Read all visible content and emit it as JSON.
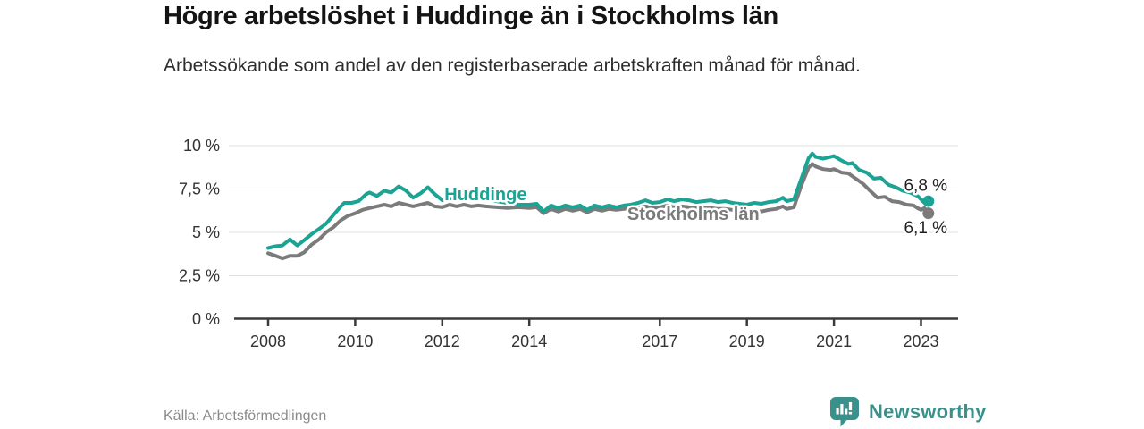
{
  "header": {
    "title": "Högre arbetslöshet i Huddinge än i Stockholms län",
    "subtitle": "Arbetssökande som andel av den registerbaserade arbetskraften månad för månad."
  },
  "chart_data": {
    "type": "line",
    "title": "Högre arbetslöshet i Huddinge än i Stockholms län",
    "xlabel": "",
    "ylabel": "",
    "x_unit": "year, monthly observations",
    "xlim": [
      2007.2,
      2023.9
    ],
    "ylim": [
      0,
      10
    ],
    "grid": true,
    "y_ticks": [
      {
        "value": 0,
        "label": "0 %"
      },
      {
        "value": 2.5,
        "label": "2,5 %"
      },
      {
        "value": 5,
        "label": "5 %"
      },
      {
        "value": 7.5,
        "label": "7,5 %"
      },
      {
        "value": 10,
        "label": "10 %"
      }
    ],
    "x_ticks": [
      {
        "value": 2008,
        "label": "2008"
      },
      {
        "value": 2010,
        "label": "2010"
      },
      {
        "value": 2012,
        "label": "2012"
      },
      {
        "value": 2014,
        "label": "2014"
      },
      {
        "value": 2017,
        "label": "2017"
      },
      {
        "value": 2019,
        "label": "2019"
      },
      {
        "value": 2021,
        "label": "2021"
      },
      {
        "value": 2023,
        "label": "2023"
      }
    ],
    "series": [
      {
        "name": "Stockholms län",
        "color": "#7b7b7b",
        "end_label": "6,1 %",
        "end_label_side": "below",
        "label_anchor": {
          "year": 2017.77,
          "value": 6.03,
          "anchor": "middle"
        },
        "points": [
          [
            2008.0,
            3.8
          ],
          [
            2008.17,
            3.65
          ],
          [
            2008.33,
            3.5
          ],
          [
            2008.5,
            3.65
          ],
          [
            2008.67,
            3.65
          ],
          [
            2008.83,
            3.85
          ],
          [
            2009.0,
            4.3
          ],
          [
            2009.17,
            4.6
          ],
          [
            2009.33,
            5.0
          ],
          [
            2009.5,
            5.3
          ],
          [
            2009.67,
            5.7
          ],
          [
            2009.83,
            5.95
          ],
          [
            2010.0,
            6.1
          ],
          [
            2010.17,
            6.3
          ],
          [
            2010.33,
            6.4
          ],
          [
            2010.5,
            6.5
          ],
          [
            2010.67,
            6.6
          ],
          [
            2010.83,
            6.5
          ],
          [
            2011.0,
            6.7
          ],
          [
            2011.17,
            6.6
          ],
          [
            2011.33,
            6.5
          ],
          [
            2011.5,
            6.6
          ],
          [
            2011.67,
            6.7
          ],
          [
            2011.83,
            6.5
          ],
          [
            2012.0,
            6.45
          ],
          [
            2012.17,
            6.6
          ],
          [
            2012.33,
            6.5
          ],
          [
            2012.5,
            6.6
          ],
          [
            2012.67,
            6.5
          ],
          [
            2012.83,
            6.55
          ],
          [
            2013.0,
            6.5
          ],
          [
            2013.25,
            6.45
          ],
          [
            2013.5,
            6.4
          ],
          [
            2013.75,
            6.45
          ],
          [
            2014.0,
            6.4
          ],
          [
            2014.17,
            6.45
          ],
          [
            2014.33,
            6.1
          ],
          [
            2014.5,
            6.35
          ],
          [
            2014.67,
            6.2
          ],
          [
            2014.83,
            6.35
          ],
          [
            2015.0,
            6.25
          ],
          [
            2015.17,
            6.35
          ],
          [
            2015.33,
            6.15
          ],
          [
            2015.5,
            6.35
          ],
          [
            2015.67,
            6.25
          ],
          [
            2015.83,
            6.35
          ],
          [
            2016.0,
            6.3
          ],
          [
            2016.17,
            6.35
          ],
          [
            2016.33,
            6.4
          ],
          [
            2016.5,
            6.4
          ],
          [
            2016.67,
            6.5
          ],
          [
            2016.83,
            6.4
          ],
          [
            2017.0,
            6.45
          ],
          [
            2017.17,
            6.55
          ],
          [
            2017.33,
            6.45
          ],
          [
            2017.5,
            6.5
          ],
          [
            2017.67,
            6.45
          ],
          [
            2017.83,
            6.4
          ],
          [
            2018.0,
            6.45
          ],
          [
            2018.17,
            6.4
          ],
          [
            2018.33,
            6.35
          ],
          [
            2018.5,
            6.35
          ],
          [
            2018.67,
            6.3
          ],
          [
            2018.83,
            6.25
          ],
          [
            2019.0,
            6.15
          ],
          [
            2019.17,
            6.25
          ],
          [
            2019.33,
            6.2
          ],
          [
            2019.5,
            6.3
          ],
          [
            2019.67,
            6.35
          ],
          [
            2019.83,
            6.5
          ],
          [
            2019.92,
            6.35
          ],
          [
            2020.08,
            6.45
          ],
          [
            2020.25,
            7.7
          ],
          [
            2020.42,
            8.75
          ],
          [
            2020.5,
            8.95
          ],
          [
            2020.58,
            8.8
          ],
          [
            2020.75,
            8.65
          ],
          [
            2020.92,
            8.6
          ],
          [
            2021.0,
            8.65
          ],
          [
            2021.17,
            8.45
          ],
          [
            2021.33,
            8.4
          ],
          [
            2021.5,
            8.1
          ],
          [
            2021.67,
            7.8
          ],
          [
            2021.83,
            7.4
          ],
          [
            2022.0,
            7.0
          ],
          [
            2022.17,
            7.05
          ],
          [
            2022.33,
            6.8
          ],
          [
            2022.5,
            6.75
          ],
          [
            2022.67,
            6.6
          ],
          [
            2022.83,
            6.55
          ],
          [
            2022.92,
            6.4
          ],
          [
            2023.0,
            6.3
          ],
          [
            2023.08,
            6.4
          ],
          [
            2023.17,
            6.1
          ]
        ]
      },
      {
        "name": "Huddinge",
        "color": "#1ba394",
        "end_label": "6,8 %",
        "end_label_side": "above",
        "label_anchor": {
          "year": 2012.05,
          "value": 7.17,
          "anchor": "start"
        },
        "points": [
          [
            2008.0,
            4.1
          ],
          [
            2008.17,
            4.2
          ],
          [
            2008.33,
            4.25
          ],
          [
            2008.5,
            4.6
          ],
          [
            2008.67,
            4.25
          ],
          [
            2008.83,
            4.55
          ],
          [
            2009.0,
            4.9
          ],
          [
            2009.17,
            5.2
          ],
          [
            2009.33,
            5.5
          ],
          [
            2009.5,
            6.0
          ],
          [
            2009.67,
            6.5
          ],
          [
            2009.75,
            6.7
          ],
          [
            2009.92,
            6.7
          ],
          [
            2010.08,
            6.8
          ],
          [
            2010.25,
            7.2
          ],
          [
            2010.33,
            7.3
          ],
          [
            2010.5,
            7.1
          ],
          [
            2010.67,
            7.4
          ],
          [
            2010.83,
            7.3
          ],
          [
            2011.0,
            7.65
          ],
          [
            2011.17,
            7.4
          ],
          [
            2011.33,
            7.0
          ],
          [
            2011.5,
            7.25
          ],
          [
            2011.67,
            7.6
          ],
          [
            2011.83,
            7.2
          ],
          [
            2012.0,
            6.85
          ],
          [
            2012.17,
            7.0
          ],
          [
            2012.33,
            6.85
          ],
          [
            2012.5,
            7.0
          ],
          [
            2012.67,
            6.9
          ],
          [
            2012.83,
            6.95
          ],
          [
            2013.0,
            6.9
          ],
          [
            2013.25,
            6.8
          ],
          [
            2013.5,
            6.7
          ],
          [
            2013.75,
            6.6
          ],
          [
            2014.0,
            6.6
          ],
          [
            2014.17,
            6.65
          ],
          [
            2014.33,
            6.2
          ],
          [
            2014.5,
            6.55
          ],
          [
            2014.67,
            6.4
          ],
          [
            2014.83,
            6.55
          ],
          [
            2015.0,
            6.45
          ],
          [
            2015.17,
            6.55
          ],
          [
            2015.33,
            6.3
          ],
          [
            2015.5,
            6.55
          ],
          [
            2015.67,
            6.45
          ],
          [
            2015.83,
            6.55
          ],
          [
            2016.0,
            6.45
          ],
          [
            2016.17,
            6.55
          ],
          [
            2016.33,
            6.6
          ],
          [
            2016.5,
            6.7
          ],
          [
            2016.67,
            6.85
          ],
          [
            2016.83,
            6.7
          ],
          [
            2017.0,
            6.75
          ],
          [
            2017.17,
            6.9
          ],
          [
            2017.33,
            6.8
          ],
          [
            2017.5,
            6.9
          ],
          [
            2017.67,
            6.85
          ],
          [
            2017.83,
            6.75
          ],
          [
            2018.0,
            6.8
          ],
          [
            2018.17,
            6.85
          ],
          [
            2018.33,
            6.75
          ],
          [
            2018.5,
            6.8
          ],
          [
            2018.67,
            6.7
          ],
          [
            2018.83,
            6.65
          ],
          [
            2019.0,
            6.6
          ],
          [
            2019.17,
            6.7
          ],
          [
            2019.33,
            6.65
          ],
          [
            2019.5,
            6.75
          ],
          [
            2019.67,
            6.8
          ],
          [
            2019.83,
            7.0
          ],
          [
            2019.92,
            6.8
          ],
          [
            2020.08,
            6.9
          ],
          [
            2020.25,
            8.1
          ],
          [
            2020.42,
            9.3
          ],
          [
            2020.5,
            9.55
          ],
          [
            2020.58,
            9.35
          ],
          [
            2020.75,
            9.25
          ],
          [
            2020.92,
            9.35
          ],
          [
            2021.0,
            9.4
          ],
          [
            2021.17,
            9.15
          ],
          [
            2021.33,
            8.95
          ],
          [
            2021.42,
            9.0
          ],
          [
            2021.58,
            8.6
          ],
          [
            2021.75,
            8.45
          ],
          [
            2021.92,
            8.1
          ],
          [
            2022.08,
            8.15
          ],
          [
            2022.25,
            7.75
          ],
          [
            2022.42,
            7.6
          ],
          [
            2022.58,
            7.4
          ],
          [
            2022.75,
            7.3
          ],
          [
            2022.92,
            7.1
          ],
          [
            2023.0,
            6.9
          ],
          [
            2023.08,
            6.7
          ],
          [
            2023.17,
            6.8
          ]
        ]
      }
    ],
    "legend_position": "inline-labels-on-lines"
  },
  "footer": {
    "source": "Källa: Arbetsförmedlingen",
    "brand": "Newsworthy"
  },
  "colors": {
    "huddinge": "#1ba394",
    "stockholm": "#7b7b7b",
    "brand_teal": "#3a918c",
    "grid": "#e0e0e0",
    "axis": "#3a3a3a",
    "title_text": "#141414",
    "muted_text": "#8a8a8a"
  }
}
